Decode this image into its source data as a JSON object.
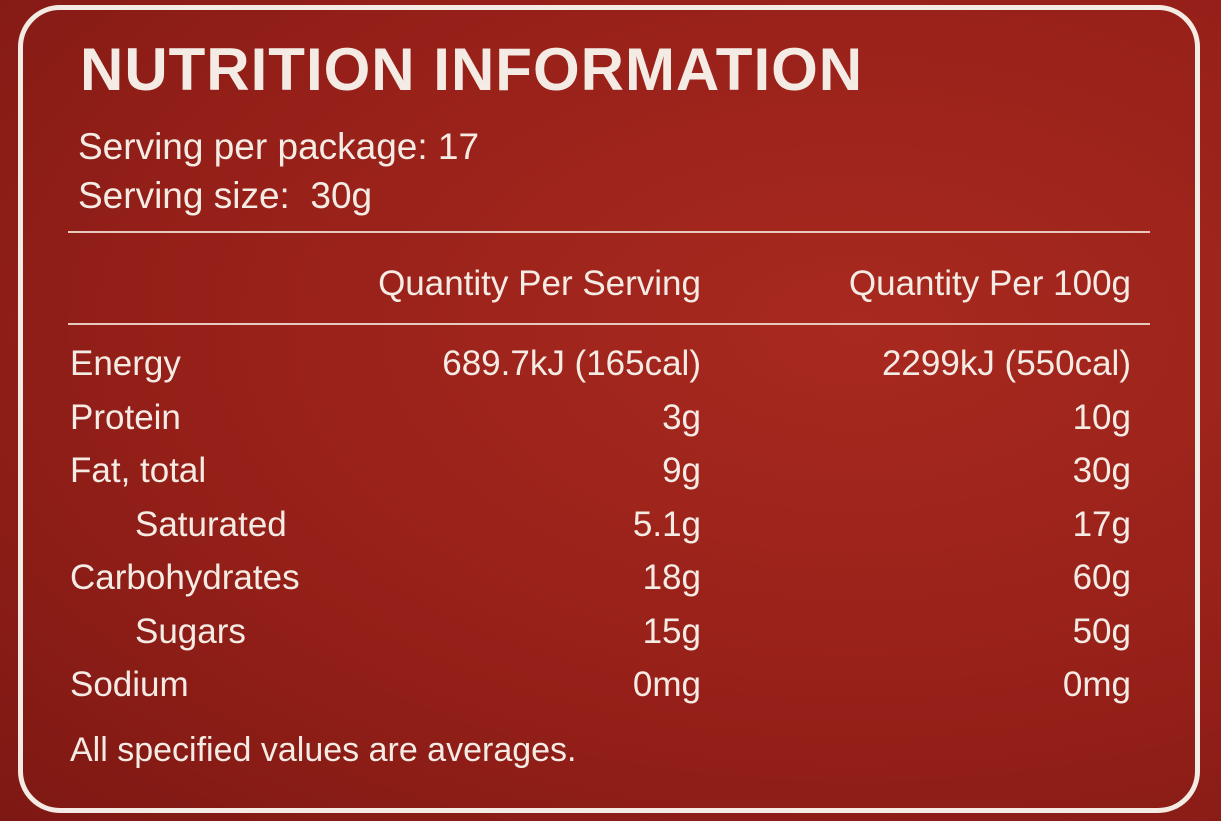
{
  "header": {
    "title": "NUTRITION INFORMATION",
    "servings_per_package": "Serving per package: 17",
    "serving_size": "Serving size:  30g"
  },
  "table": {
    "columns": [
      "Quantity Per Serving",
      "Quantity Per 100g"
    ],
    "rows": [
      {
        "cells": [
          "Energy",
          "689.7kJ (165cal)",
          "2299kJ (550cal)"
        ]
      },
      {
        "cells": [
          "Protein",
          "3g",
          "10g"
        ]
      },
      {
        "cells": [
          "Fat, total",
          "9g",
          "30g"
        ],
        "sub": [
          [
            "Saturated",
            "5.1g",
            "17g"
          ]
        ]
      },
      {
        "cells": [
          "Carbohydrates",
          "18g",
          "60g"
        ],
        "sub": [
          [
            "Sugars",
            "15g",
            "50g"
          ]
        ]
      },
      {
        "cells": [
          "Sodium",
          "0mg",
          "0mg"
        ]
      }
    ]
  },
  "footnote": "All specified values are averages."
}
